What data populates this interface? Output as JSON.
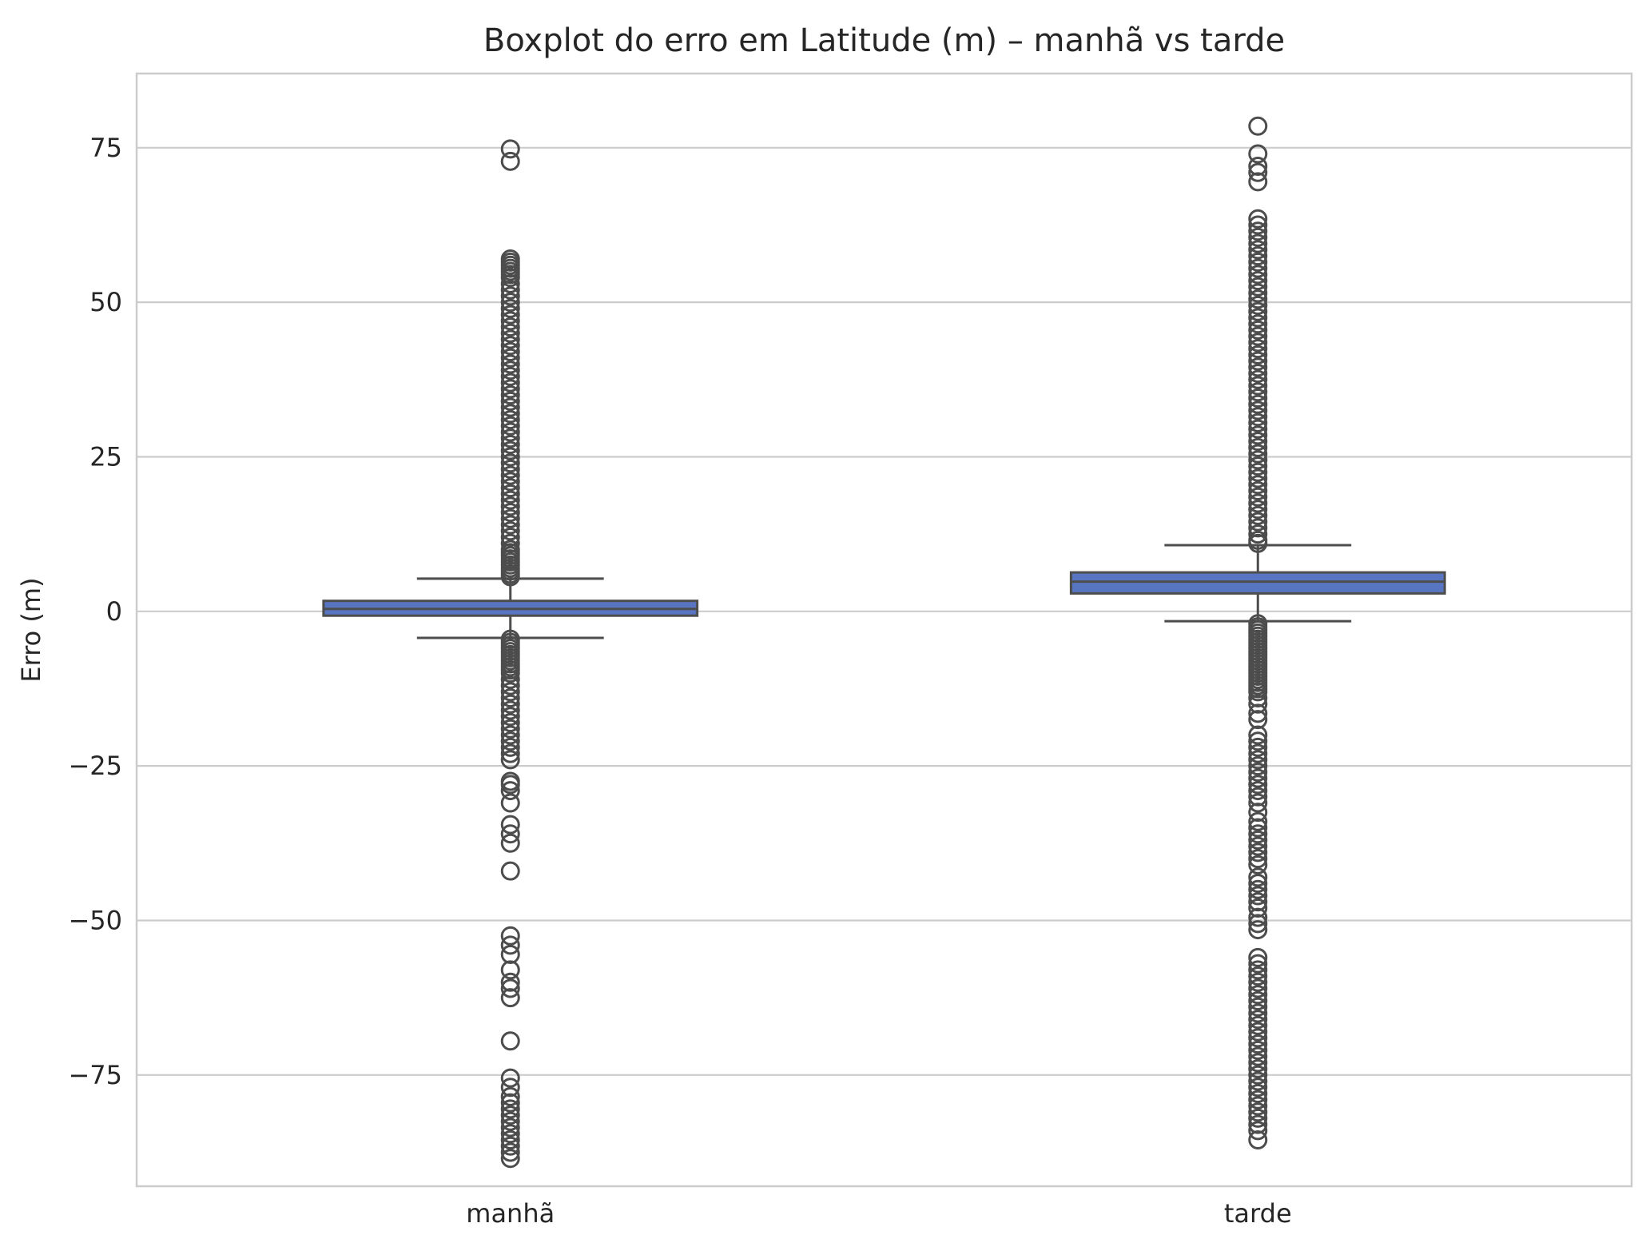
{
  "chart_data": {
    "type": "boxplot",
    "title": "Boxplot do erro em Latitude (m) – manhã vs tarde",
    "xlabel": "",
    "ylabel": "Erro (m)",
    "ylim": [
      -93,
      87
    ],
    "yticks": [
      -75,
      -50,
      -25,
      0,
      25,
      50,
      75
    ],
    "ytick_labels": [
      "−75",
      "−50",
      "−25",
      "0",
      "25",
      "50",
      "75"
    ],
    "grid": true,
    "categories": [
      "manhã",
      "tarde"
    ],
    "series": [
      {
        "category": "manhã",
        "whisker_low": -4.3,
        "q1": -0.7,
        "median": 0.4,
        "q3": 1.7,
        "whisker_high": 5.3,
        "outliers": [
          74.8,
          72.8,
          57,
          56.5,
          56,
          55.5,
          55,
          54.5,
          54,
          53,
          52,
          51,
          50,
          49,
          48,
          47,
          46,
          45,
          44,
          43,
          42,
          41,
          40,
          39,
          38,
          37,
          36,
          35,
          34,
          33,
          32,
          31,
          30,
          29,
          28,
          27,
          26,
          25,
          24,
          23,
          22,
          21,
          20,
          19,
          18,
          17,
          16,
          15,
          14,
          13,
          12,
          11,
          10,
          9.5,
          9,
          8.5,
          8,
          7.5,
          7,
          6.5,
          6,
          5.6,
          -4.5,
          -5,
          -5.5,
          -6,
          -6.5,
          -7,
          -7.5,
          -8,
          -8.5,
          -9,
          -9.5,
          -10,
          -11,
          -12,
          -13,
          -14,
          -15,
          -16,
          -17,
          -18,
          -19,
          -20,
          -21,
          -22,
          -23,
          -24,
          -27.5,
          -28,
          -29,
          -31,
          -34.5,
          -36,
          -37.5,
          -42,
          -52.5,
          -54,
          -55.5,
          -58,
          -60,
          -61,
          -62.5,
          -69.5,
          -75.5,
          -77,
          -78.5,
          -79.5,
          -80.5,
          -81.5,
          -82.5,
          -83.5,
          -84.5,
          -85.5,
          -86.5,
          -87.5,
          -88.5
        ]
      },
      {
        "category": "tarde",
        "whisker_low": -1.6,
        "q1": 2.9,
        "median": 4.8,
        "q3": 6.3,
        "whisker_high": 10.7,
        "outliers": [
          78.5,
          74,
          72,
          71,
          69.5,
          63.5,
          62.5,
          61.5,
          60.5,
          59.5,
          58.5,
          57.5,
          56.5,
          55.5,
          54.5,
          53.5,
          52.5,
          51.5,
          50.5,
          49.5,
          48.5,
          47.5,
          46.5,
          45.5,
          44.5,
          43.5,
          42.5,
          41.5,
          40.5,
          39.5,
          38.5,
          37.5,
          36.5,
          35.5,
          34.5,
          33.5,
          32.5,
          31.5,
          30.5,
          29.5,
          28.5,
          27.5,
          26.5,
          25.5,
          24.5,
          23.5,
          22.5,
          21.5,
          20.5,
          19.5,
          18.5,
          17.5,
          16.5,
          15.5,
          14.5,
          13.5,
          12.5,
          11.5,
          11,
          -2,
          -2.5,
          -3,
          -3.5,
          -4,
          -4.5,
          -5,
          -5.5,
          -6,
          -6.5,
          -7,
          -7.5,
          -8,
          -8.5,
          -9,
          -9.5,
          -10,
          -10.5,
          -11,
          -11.5,
          -12,
          -12.5,
          -13,
          -14,
          -15,
          -16.5,
          -17.5,
          -20,
          -21,
          -22,
          -23,
          -24,
          -25,
          -26,
          -27,
          -28,
          -29,
          -30,
          -31,
          -32.5,
          -34,
          -35,
          -36,
          -37,
          -38,
          -39,
          -40,
          -41,
          -43,
          -44,
          -45,
          -46,
          -47,
          -48,
          -49.5,
          -50.5,
          -51.5,
          -56,
          -57,
          -58,
          -59,
          -60,
          -61,
          -62,
          -63,
          -64,
          -65,
          -66,
          -67,
          -68,
          -69,
          -70,
          -71,
          -72,
          -73,
          -74,
          -75,
          -76,
          -77,
          -78,
          -79,
          -80,
          -81,
          -82,
          -83,
          -84,
          -85.5
        ]
      }
    ],
    "colors": {
      "box_fill": "#5875c2",
      "box_edge": "#4d4d4d",
      "grid": "#cccccc",
      "spine": "#cccccc",
      "text": "#262626"
    }
  }
}
